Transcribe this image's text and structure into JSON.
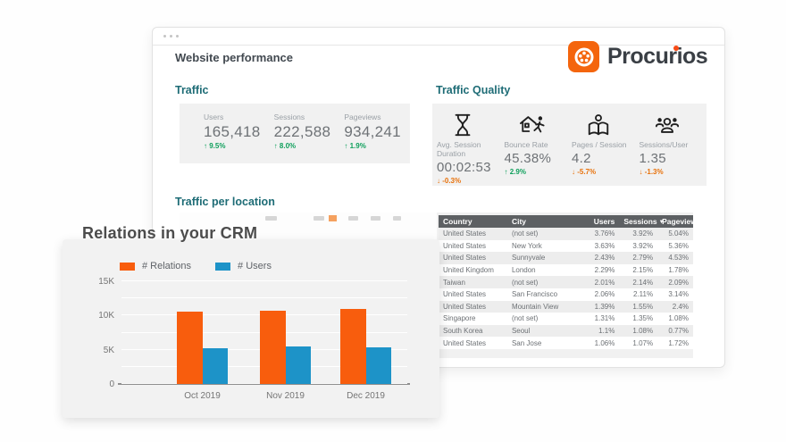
{
  "window": {
    "title": "Website performance",
    "logo": {
      "text": "Procurios",
      "brand_orange": "#F4650D",
      "dot_orange": "#F84B16"
    }
  },
  "traffic": {
    "heading": "Traffic",
    "metrics": [
      {
        "label": "Users",
        "value": "165,418",
        "change": "↑ 9.5%",
        "trend": "up"
      },
      {
        "label": "Sessions",
        "value": "222,588",
        "change": "↑ 8.0%",
        "trend": "up"
      },
      {
        "label": "Pageviews",
        "value": "934,241",
        "change": "↑ 1.9%",
        "trend": "up"
      }
    ]
  },
  "traffic_quality": {
    "heading": "Traffic Quality",
    "metrics": [
      {
        "icon": "hourglass-icon",
        "label": "Avg. Session Duration",
        "value": "00:02:53",
        "change": "↓ -0.3%",
        "trend": "down"
      },
      {
        "icon": "bounce-rate-icon",
        "label": "Bounce Rate",
        "value": "45.38%",
        "change": "↑ 2.9%",
        "trend": "up"
      },
      {
        "icon": "pages-per-session-icon",
        "label": "Pages / Session",
        "value": "4.2",
        "change": "↓ -5.7%",
        "trend": "down"
      },
      {
        "icon": "sessions-per-user-icon",
        "label": "Sessions/User",
        "value": "1.35",
        "change": "↓ -1.3%",
        "trend": "down"
      }
    ]
  },
  "traffic_per_location": {
    "heading": "Traffic per location",
    "table": {
      "columns": [
        "Country",
        "City",
        "Users",
        "Sessions",
        "Pageviews"
      ],
      "sorted_column": "Sessions",
      "sort_indicator": "▼",
      "rows": [
        {
          "country": "United States",
          "city": "(not set)",
          "users": "3.76%",
          "sessions": "3.92%",
          "pageviews": "5.04%"
        },
        {
          "country": "United States",
          "city": "New York",
          "users": "3.63%",
          "sessions": "3.92%",
          "pageviews": "5.36%"
        },
        {
          "country": "United States",
          "city": "Sunnyvale",
          "users": "2.43%",
          "sessions": "2.79%",
          "pageviews": "4.53%"
        },
        {
          "country": "United Kingdom",
          "city": "London",
          "users": "2.29%",
          "sessions": "2.15%",
          "pageviews": "1.78%"
        },
        {
          "country": "Taiwan",
          "city": "(not set)",
          "users": "2.01%",
          "sessions": "2.14%",
          "pageviews": "2.09%"
        },
        {
          "country": "United States",
          "city": "San Francisco",
          "users": "2.06%",
          "sessions": "2.11%",
          "pageviews": "3.14%"
        },
        {
          "country": "United States",
          "city": "Mountain View",
          "users": "1.39%",
          "sessions": "1.55%",
          "pageviews": "2.4%"
        },
        {
          "country": "Singapore",
          "city": "(not set)",
          "users": "1.31%",
          "sessions": "1.35%",
          "pageviews": "1.08%"
        },
        {
          "country": "South Korea",
          "city": "Seoul",
          "users": "1.1%",
          "sessions": "1.08%",
          "pageviews": "0.77%"
        },
        {
          "country": "United States",
          "city": "San Jose",
          "users": "1.06%",
          "sessions": "1.07%",
          "pageviews": "1.72%"
        }
      ]
    }
  },
  "crm_card": {
    "title": "Relations in your CRM",
    "chart_data": {
      "type": "bar",
      "title": "Relations in your CRM",
      "categories": [
        "Oct 2019",
        "Nov 2019",
        "Dec 2019"
      ],
      "series": [
        {
          "name": "# Relations",
          "color": "#F85D0D",
          "values": [
            10600,
            10750,
            10900
          ]
        },
        {
          "name": "# Users",
          "color": "#1D93C8",
          "values": [
            5200,
            5450,
            5350
          ]
        }
      ],
      "xlabel": "",
      "ylabel": "",
      "ylim": [
        0,
        15000
      ],
      "ytick_step": 2500,
      "yticks": [
        {
          "value": 0,
          "label": "0"
        },
        {
          "value": 5000,
          "label": "5K"
        },
        {
          "value": 10000,
          "label": "10K"
        },
        {
          "value": 15000,
          "label": "15K"
        }
      ],
      "grid": true,
      "legend_position": "top"
    }
  }
}
